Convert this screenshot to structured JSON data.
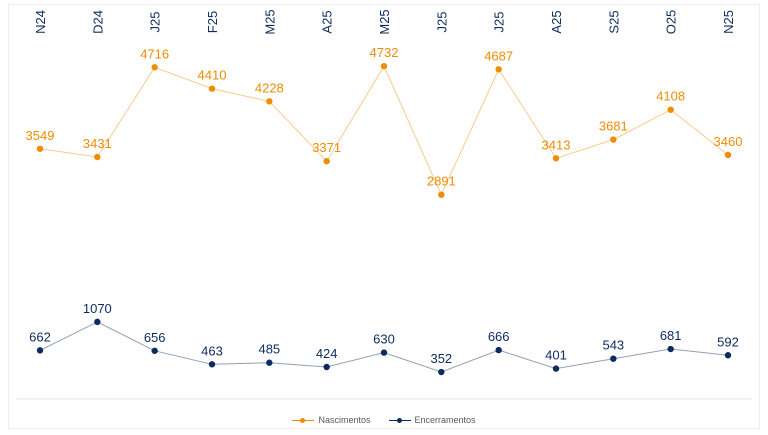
{
  "chart_data": {
    "type": "line",
    "categories": [
      "N24",
      "D24",
      "J25",
      "F25",
      "M25",
      "A25",
      "M25",
      "J25",
      "J25",
      "A25",
      "S25",
      "O25",
      "N25"
    ],
    "series": [
      {
        "name": "Nascimentos",
        "color": "#f08c00",
        "values": [
          3549,
          3431,
          4716,
          4410,
          4228,
          3371,
          4732,
          2891,
          4687,
          3413,
          3681,
          4108,
          3460
        ]
      },
      {
        "name": "Encerramentos",
        "color": "#0d2b5e",
        "values": [
          662,
          1070,
          656,
          463,
          485,
          424,
          630,
          352,
          666,
          401,
          543,
          681,
          592
        ]
      }
    ],
    "xlabel": "",
    "ylabel": "",
    "axis_label_color": "#0d2b5e",
    "grid": false,
    "y_axis_visible": false,
    "legend_position": "bottom"
  }
}
